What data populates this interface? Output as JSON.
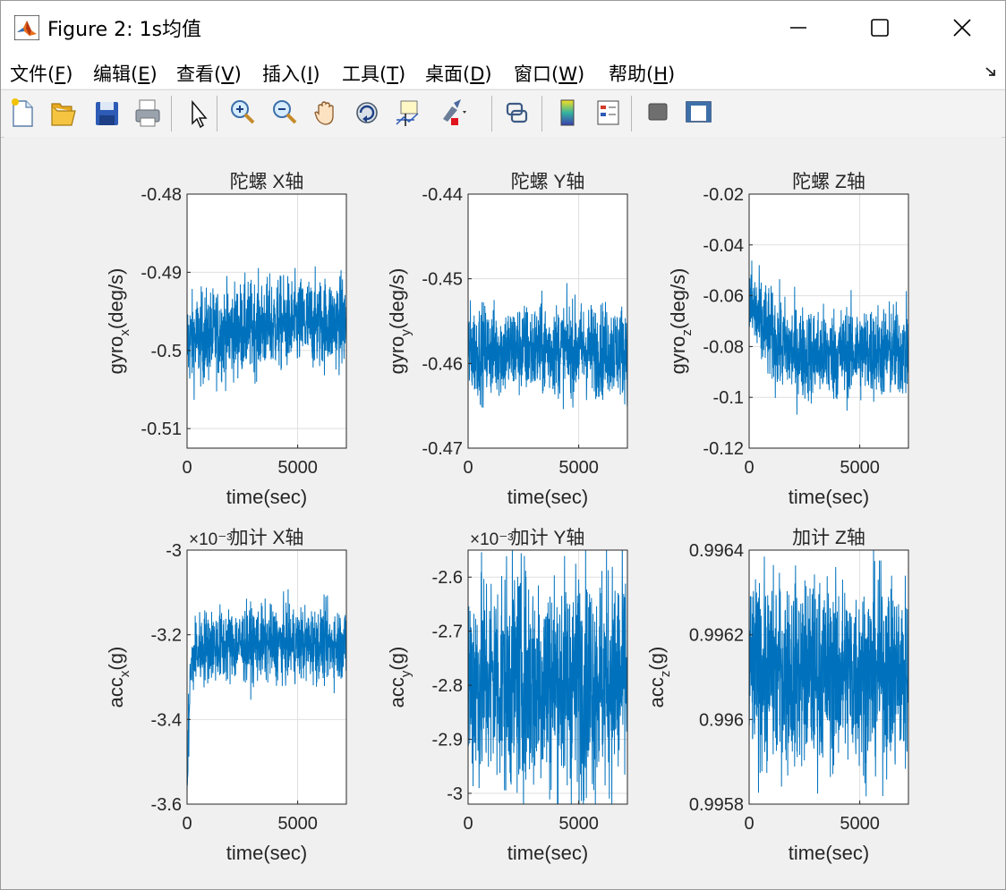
{
  "window": {
    "title": "Figure 2: 1s均值",
    "icon": "matlab-logo-icon",
    "controls": [
      "minimize-icon",
      "maximize-icon",
      "close-icon"
    ]
  },
  "menu": [
    {
      "label": "文件(F)",
      "pre": "文件(",
      "key": "F",
      "post": ")"
    },
    {
      "label": "编辑(E)",
      "pre": "编辑(",
      "key": "E",
      "post": ")"
    },
    {
      "label": "查看(V)",
      "pre": "查看(",
      "key": "V",
      "post": ")"
    },
    {
      "label": "插入(I)",
      "pre": "插入(",
      "key": "I",
      "post": ")"
    },
    {
      "label": "工具(T)",
      "pre": "工具(",
      "key": "T",
      "post": ")"
    },
    {
      "label": "桌面(D)",
      "pre": "桌面(",
      "key": "D",
      "post": ")"
    },
    {
      "label": "窗口(W)",
      "pre": "窗口(",
      "key": "W",
      "post": ")"
    },
    {
      "label": "帮助(H)",
      "pre": "帮助(",
      "key": "H",
      "post": ")"
    }
  ],
  "toolbar": {
    "buttons": [
      "new-figure-icon",
      "open-file-icon",
      "save-icon",
      "print-icon",
      "edit-plot-arrow-icon",
      "zoom-in-icon",
      "zoom-out-icon",
      "pan-hand-icon",
      "rotate-3d-icon",
      "data-cursor-icon",
      "brush-icon",
      "link-plot-icon",
      "colorbar-icon",
      "legend-icon",
      "hide-plot-tools-icon",
      "show-plot-tools-icon"
    ]
  },
  "colors": {
    "series": "#0072BD",
    "axes": "#262626",
    "grid": "#dfdfdf",
    "figure_bg": "#f0f0f0"
  },
  "chart_data": [
    {
      "type": "line",
      "title": "陀螺 X轴",
      "xlabel": "time(sec)",
      "ylabel_base": "gyro",
      "ylabel_sub": "x",
      "ylabel_unit": "(deg/s)",
      "xlim": [
        0,
        7200
      ],
      "ylim": [
        -0.5125,
        -0.48
      ],
      "xticks": [
        0,
        5000
      ],
      "yticks": [
        "-0.48",
        "-0.49",
        "-0.5",
        "-0.51"
      ],
      "ytick_values": [
        -0.48,
        -0.49,
        -0.5,
        -0.51
      ],
      "exponent": "",
      "series": [
        {
          "x": [
            0,
            200,
            500,
            1000,
            1500,
            2000,
            2500,
            3000,
            3500,
            4000,
            4500,
            5000,
            5500,
            6000,
            6500,
            7200
          ],
          "y_mean": [
            -0.499,
            -0.4988,
            -0.4985,
            -0.4982,
            -0.4978,
            -0.4975,
            -0.4972,
            -0.497,
            -0.4968,
            -0.4967,
            -0.4966,
            -0.4966,
            -0.4965,
            -0.4965,
            -0.4964,
            -0.4964
          ],
          "noise": 0.004
        }
      ]
    },
    {
      "type": "line",
      "title": "陀螺 Y轴",
      "xlabel": "time(sec)",
      "ylabel_base": "gyro",
      "ylabel_sub": "y",
      "ylabel_unit": "(deg/s)",
      "xlim": [
        0,
        7200
      ],
      "ylim": [
        -0.47,
        -0.44
      ],
      "xticks": [
        0,
        5000
      ],
      "yticks": [
        "-0.44",
        "-0.45",
        "-0.46",
        "-0.47"
      ],
      "ytick_values": [
        -0.44,
        -0.45,
        -0.46,
        -0.47
      ],
      "exponent": "",
      "series": [
        {
          "x": [
            0,
            1000,
            2000,
            3000,
            4000,
            5000,
            6000,
            7200
          ],
          "y_mean": [
            -0.4585,
            -0.4585,
            -0.4584,
            -0.4584,
            -0.4583,
            -0.4584,
            -0.4584,
            -0.4584
          ],
          "noise": 0.0037
        }
      ]
    },
    {
      "type": "line",
      "title": "陀螺 Z轴",
      "xlabel": "time(sec)",
      "ylabel_base": "gyro",
      "ylabel_sub": "z",
      "ylabel_unit": "(deg/s)",
      "xlim": [
        0,
        7200
      ],
      "ylim": [
        -0.12,
        -0.02
      ],
      "xticks": [
        0,
        5000
      ],
      "yticks": [
        "-0.02",
        "-0.04",
        "-0.06",
        "-0.08",
        "-0.1",
        "-0.12"
      ],
      "ytick_values": [
        -0.02,
        -0.04,
        -0.06,
        -0.08,
        -0.1,
        -0.12
      ],
      "exponent": "",
      "series": [
        {
          "x": [
            0,
            200,
            500,
            1000,
            1500,
            2000,
            2500,
            3000,
            4000,
            5000,
            6000,
            7200
          ],
          "y_mean": [
            -0.062,
            -0.066,
            -0.071,
            -0.076,
            -0.08,
            -0.082,
            -0.083,
            -0.083,
            -0.083,
            -0.082,
            -0.082,
            -0.082
          ],
          "noise": 0.0125
        }
      ]
    },
    {
      "type": "line",
      "title": "加计 X轴",
      "xlabel": "time(sec)",
      "ylabel_base": "acc",
      "ylabel_sub": "x",
      "ylabel_unit": "(g)",
      "xlim": [
        0,
        7200
      ],
      "ylim": [
        -3.6,
        -3.0
      ],
      "xticks": [
        0,
        5000
      ],
      "yticks": [
        "-3",
        "-3.2",
        "-3.4",
        "-3.6"
      ],
      "ytick_values": [
        -3.0,
        -3.2,
        -3.4,
        -3.6
      ],
      "exponent": "×10⁻³",
      "series": [
        {
          "x": [
            0,
            30,
            60,
            100,
            150,
            250,
            400,
            700,
            1000,
            2000,
            3000,
            4000,
            5000,
            6000,
            7200
          ],
          "y_mean": [
            -3.58,
            -3.52,
            -3.45,
            -3.36,
            -3.3,
            -3.26,
            -3.24,
            -3.23,
            -3.225,
            -3.225,
            -3.222,
            -3.222,
            -3.222,
            -3.222,
            -3.222
          ],
          "noise": 0.06
        }
      ]
    },
    {
      "type": "line",
      "title": "加计 Y轴",
      "xlabel": "time(sec)",
      "ylabel_base": "acc",
      "ylabel_sub": "y",
      "ylabel_unit": "(g)",
      "xlim": [
        0,
        7200
      ],
      "ylim": [
        -3.02,
        -2.55
      ],
      "xticks": [
        0,
        5000
      ],
      "yticks": [
        "-2.6",
        "-2.7",
        "-2.8",
        "-2.9",
        "-3"
      ],
      "ytick_values": [
        -2.6,
        -2.7,
        -2.8,
        -2.9,
        -3.0
      ],
      "exponent": "×10⁻³",
      "series": [
        {
          "x": [
            0,
            1000,
            2000,
            3000,
            4000,
            5000,
            6000,
            7200
          ],
          "y_mean": [
            -2.79,
            -2.79,
            -2.79,
            -2.79,
            -2.79,
            -2.79,
            -2.79,
            -2.79
          ],
          "noise": 0.14
        }
      ]
    },
    {
      "type": "line",
      "title": "加计 Z轴",
      "xlabel": "time(sec)",
      "ylabel_base": "acc",
      "ylabel_sub": "z",
      "ylabel_unit": "(g)",
      "xlim": [
        0,
        7200
      ],
      "ylim": [
        0.9958,
        0.9964
      ],
      "xticks": [
        0,
        5000
      ],
      "yticks": [
        "0.9964",
        "0.9962",
        "0.996",
        "0.9958"
      ],
      "ytick_values": [
        0.9964,
        0.9962,
        0.996,
        0.9958
      ],
      "exponent": "",
      "series": [
        {
          "x": [
            0,
            1000,
            2000,
            3000,
            4000,
            5000,
            6000,
            7200
          ],
          "y_mean": [
            0.99611,
            0.99611,
            0.99611,
            0.99611,
            0.99611,
            0.99611,
            0.99611,
            0.99611
          ],
          "noise": 0.00015
        }
      ]
    }
  ]
}
